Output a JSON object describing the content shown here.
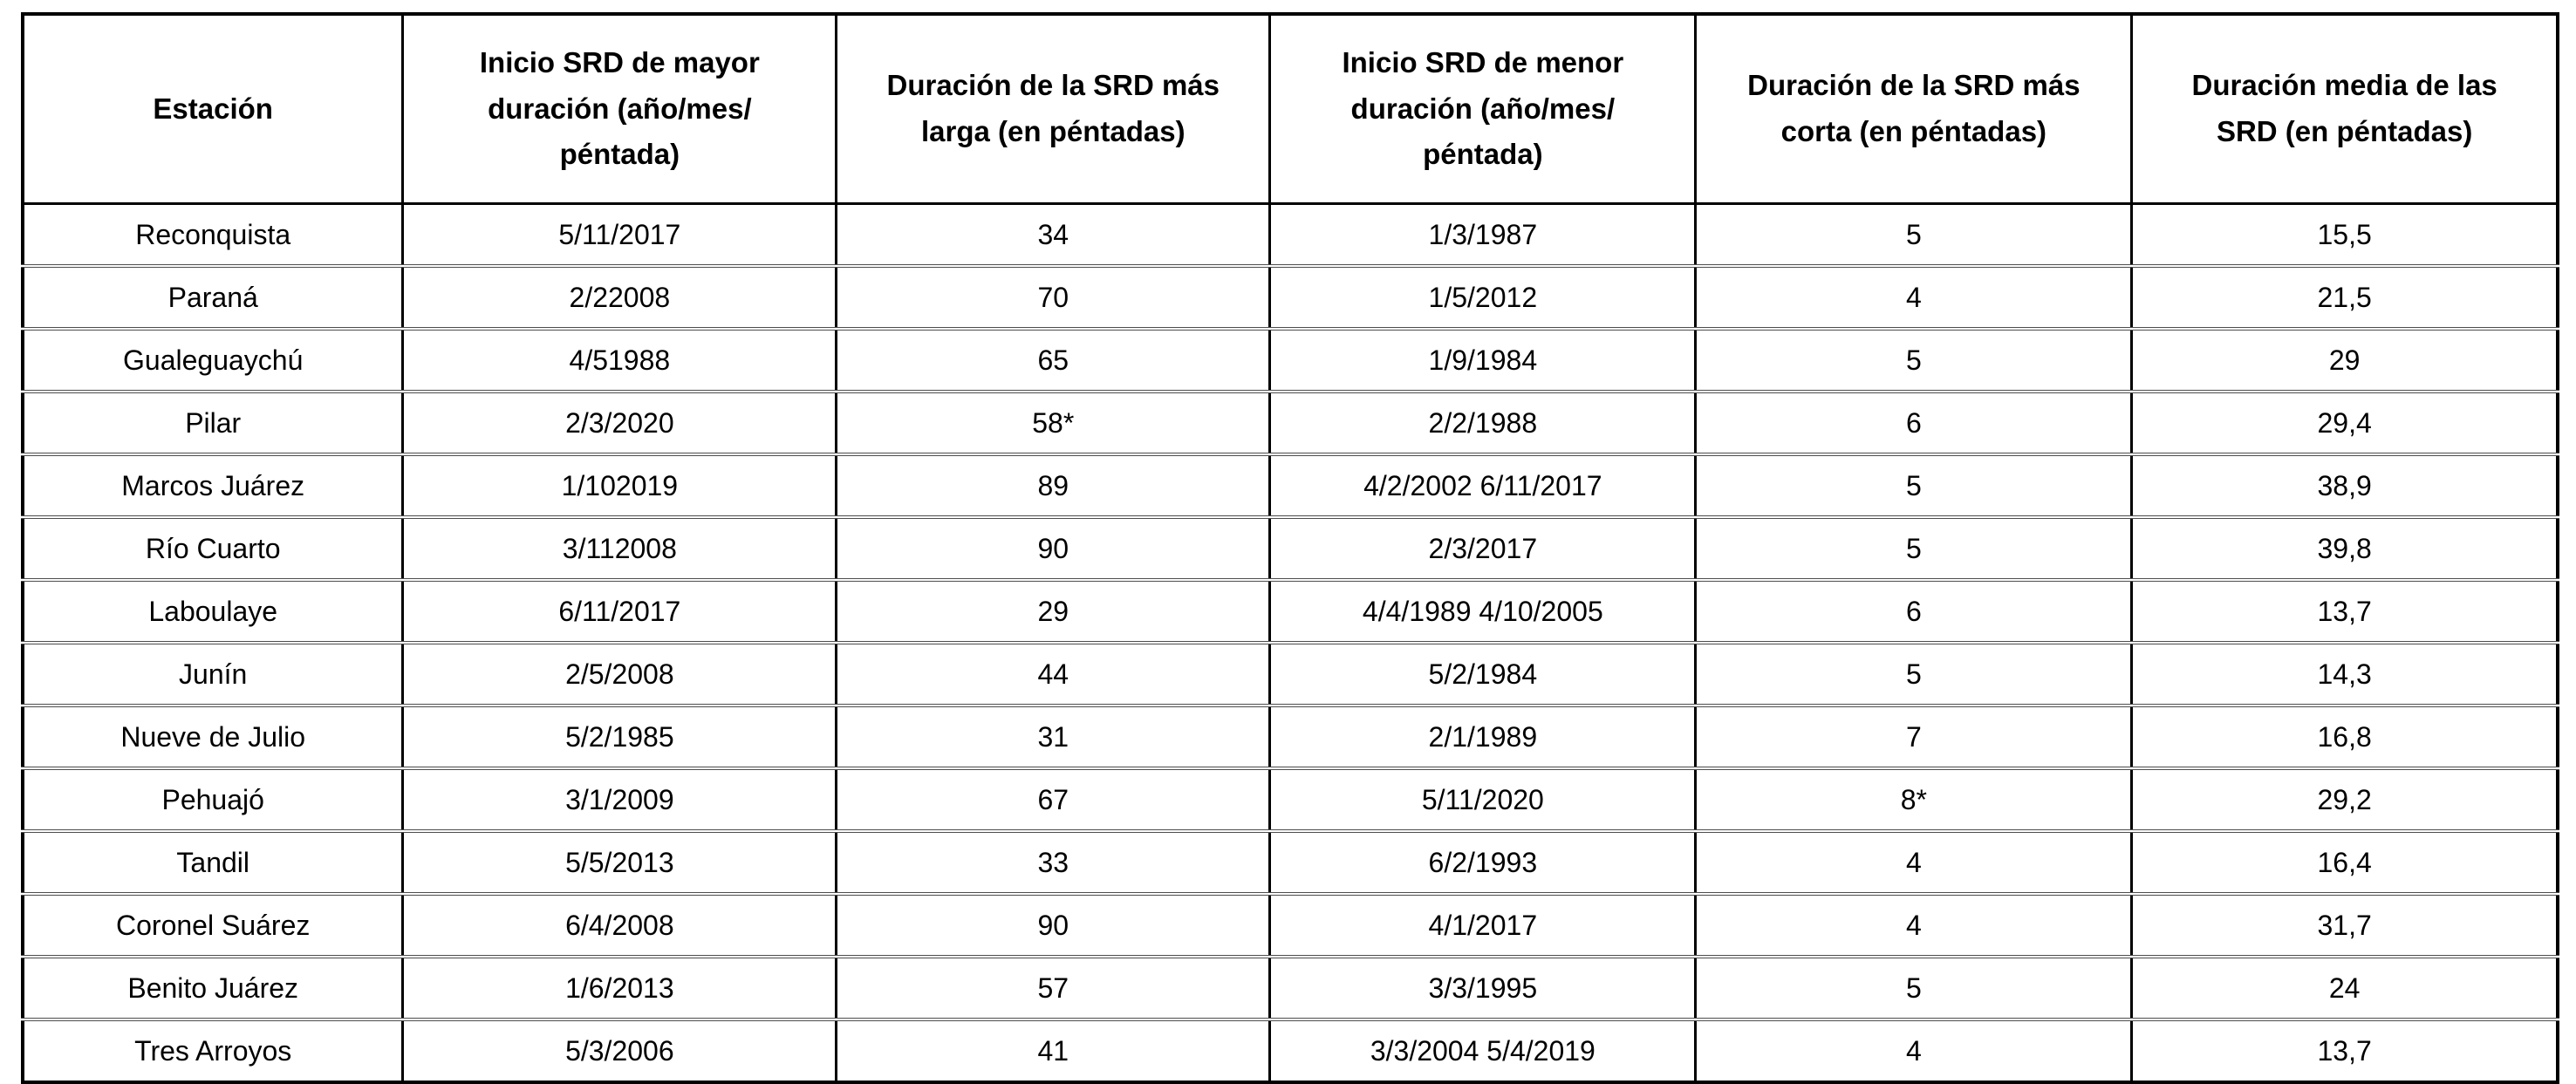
{
  "table": {
    "headers": [
      "Estación",
      "Inicio SRD de mayor\nduración (año/mes/\npéntada)",
      "Duración de la SRD más\nlarga (en péntadas)",
      "Inicio SRD de menor\nduración (año/mes/\npéntada)",
      "Duración de la SRD más\ncorta (en péntadas)",
      "Duración media de las\nSRD (en péntadas)"
    ],
    "rows": [
      {
        "cells": [
          "Reconquista",
          "5/11/2017",
          "34",
          "1/3/1987",
          "5",
          "15,5"
        ]
      },
      {
        "cells": [
          "Paraná",
          "2/22008",
          "70",
          "1/5/2012",
          "4",
          "21,5"
        ]
      },
      {
        "cells": [
          "Gualeguaychú",
          "4/51988",
          "65",
          "1/9/1984",
          "5",
          "29"
        ]
      },
      {
        "cells": [
          "Pilar",
          "2/3/2020",
          "58*",
          "2/2/1988",
          "6",
          "29,4"
        ]
      },
      {
        "cells": [
          "Marcos Juárez",
          "1/102019",
          "89",
          "4/2/2002 6/11/2017",
          "5",
          "38,9"
        ]
      },
      {
        "cells": [
          "Río Cuarto",
          "3/112008",
          "90",
          "2/3/2017",
          "5",
          "39,8"
        ]
      },
      {
        "cells": [
          "Laboulaye",
          "6/11/2017",
          "29",
          "4/4/1989 4/10/2005",
          "6",
          "13,7"
        ]
      },
      {
        "cells": [
          "Junín",
          "2/5/2008",
          "44",
          "5/2/1984",
          "5",
          "14,3"
        ]
      },
      {
        "cells": [
          "Nueve de Julio",
          "5/2/1985",
          "31",
          "2/1/1989",
          "7",
          "16,8"
        ]
      },
      {
        "cells": [
          "Pehuajó",
          "3/1/2009",
          "67",
          "5/11/2020",
          "8*",
          "29,2"
        ]
      },
      {
        "cells": [
          "Tandil",
          "5/5/2013",
          "33",
          "6/2/1993",
          "4",
          "16,4"
        ]
      },
      {
        "cells": [
          "Coronel Suárez",
          "6/4/2008",
          "90",
          "4/1/2017",
          "4",
          "31,7"
        ]
      },
      {
        "cells": [
          "Benito Juárez",
          "1/6/2013",
          "57",
          "3/3/1995",
          "5",
          "24"
        ]
      },
      {
        "cells": [
          "Tres Arroyos",
          "5/3/2006",
          "41",
          "3/3/2004 5/4/2019",
          "4",
          "13,7"
        ]
      }
    ],
    "colors": {
      "text": "#000000",
      "background": "#ffffff",
      "frame_border": "#000000",
      "row_separator": "#4d4d4d"
    }
  }
}
